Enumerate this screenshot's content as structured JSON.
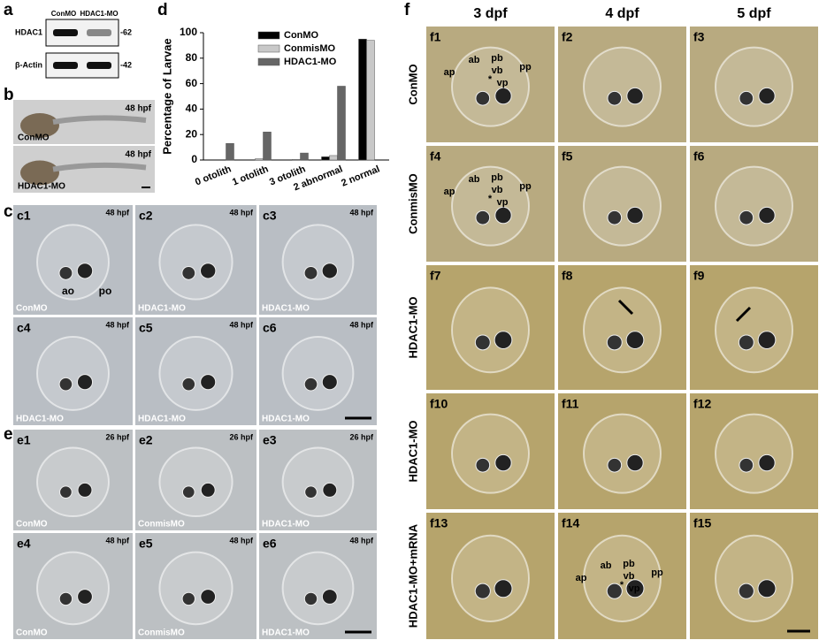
{
  "panels": {
    "a": {
      "letter": "a",
      "columns": [
        "ConMO",
        "HDAC1-MO"
      ],
      "rows": [
        {
          "label": "HDAC1",
          "marker": "-62"
        },
        {
          "label": "β-Actin",
          "marker": "-42"
        }
      ]
    },
    "b": {
      "letter": "b",
      "images": [
        {
          "time": "48 hpf",
          "label": "ConMO"
        },
        {
          "time": "48 hpf",
          "label": "HDAC1-MO"
        }
      ]
    },
    "c": {
      "letter": "c",
      "images": [
        {
          "id": "c1",
          "time": "48 hpf",
          "label": "ConMO",
          "annotations": [
            "ao",
            "po"
          ]
        },
        {
          "id": "c2",
          "time": "48 hpf",
          "label": "HDAC1-MO"
        },
        {
          "id": "c3",
          "time": "48 hpf",
          "label": "HDAC1-MO"
        },
        {
          "id": "c4",
          "time": "48 hpf",
          "label": "HDAC1-MO"
        },
        {
          "id": "c5",
          "time": "48 hpf",
          "label": "HDAC1-MO"
        },
        {
          "id": "c6",
          "time": "48 hpf",
          "label": "HDAC1-MO"
        }
      ]
    },
    "e": {
      "letter": "e",
      "images": [
        {
          "id": "e1",
          "time": "26 hpf",
          "label": "ConMO"
        },
        {
          "id": "e2",
          "time": "26 hpf",
          "label": "ConmisMO"
        },
        {
          "id": "e3",
          "time": "26 hpf",
          "label": "HDAC1-MO"
        },
        {
          "id": "e4",
          "time": "48 hpf",
          "label": "ConMO"
        },
        {
          "id": "e5",
          "time": "48 hpf",
          "label": "ConmisMO"
        },
        {
          "id": "e6",
          "time": "48 hpf",
          "label": "HDAC1-MO"
        }
      ]
    },
    "f": {
      "letter": "f",
      "columns": [
        "3 dpf",
        "4 dpf",
        "5 dpf"
      ],
      "rows": [
        {
          "label": "ConMO",
          "images": [
            {
              "id": "f1",
              "annotations": [
                "ap",
                "ab",
                "pb",
                "vb",
                "*",
                "vp",
                "pp"
              ]
            },
            {
              "id": "f2"
            },
            {
              "id": "f3"
            }
          ]
        },
        {
          "label": "ConmisMO",
          "images": [
            {
              "id": "f4",
              "annotations": [
                "ap",
                "ab",
                "pb",
                "vb",
                "*",
                "vp",
                "pp"
              ]
            },
            {
              "id": "f5"
            },
            {
              "id": "f6"
            }
          ]
        },
        {
          "label": "HDAC1-MO",
          "images": [
            {
              "id": "f7"
            },
            {
              "id": "f8"
            },
            {
              "id": "f9"
            }
          ]
        },
        {
          "label": "HDAC1-MO",
          "images": [
            {
              "id": "f10"
            },
            {
              "id": "f11"
            },
            {
              "id": "f12"
            }
          ]
        },
        {
          "label": "HDAC1-MO+mRNA",
          "images": [
            {
              "id": "f13"
            },
            {
              "id": "f14",
              "annotations": [
                "ap",
                "ab",
                "pb",
                "vb",
                "*",
                "vp",
                "pp"
              ]
            },
            {
              "id": "f15"
            }
          ]
        }
      ]
    }
  },
  "chart_data": {
    "type": "bar",
    "panel_label": "d",
    "y_label": "Percentage of Larvae",
    "categories": [
      "0 otolith",
      "1 otolith",
      "3 otolith",
      "2 abnormal",
      "2 normal"
    ],
    "series": [
      {
        "name": "ConMO",
        "color": "#000000",
        "values": [
          0,
          0,
          0,
          2.5,
          95
        ]
      },
      {
        "name": "ConmisMO",
        "color": "#c8c8c8",
        "values": [
          0,
          1,
          0.5,
          3.5,
          94
        ]
      },
      {
        "name": "HDAC1-MO",
        "color": "#666666",
        "values": [
          13,
          22,
          5.5,
          58,
          0
        ]
      }
    ],
    "ylim": [
      0,
      100
    ],
    "yticks": [
      0,
      20,
      40,
      60,
      80,
      100
    ],
    "legend": "top-right"
  }
}
